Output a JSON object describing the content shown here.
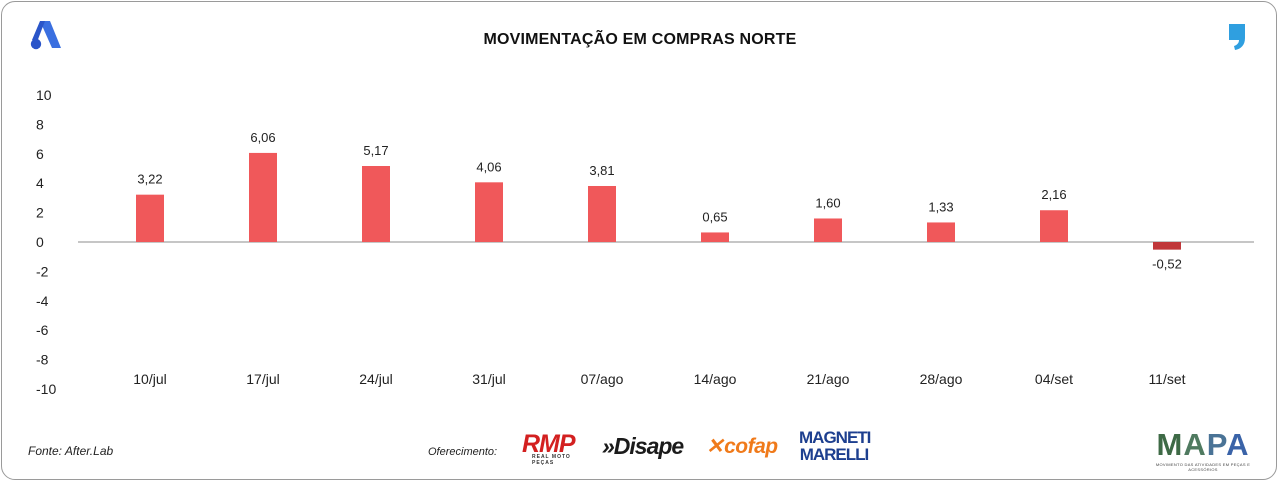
{
  "chart_data": {
    "type": "bar",
    "title": "MOVIMENTAÇÃO EM COMPRAS NORTE",
    "categories": [
      "10/jul",
      "17/jul",
      "24/jul",
      "31/jul",
      "07/ago",
      "14/ago",
      "21/ago",
      "28/ago",
      "04/set",
      "11/set"
    ],
    "values": [
      3.22,
      6.06,
      5.17,
      4.06,
      3.81,
      0.65,
      1.6,
      1.33,
      2.16,
      -0.52
    ],
    "value_labels": [
      "3,22",
      "6,06",
      "5,17",
      "4,06",
      "3,81",
      "0,65",
      "1,60",
      "1,33",
      "2,16",
      "-0,52"
    ],
    "ylim": [
      -10,
      10
    ],
    "yticks": [
      10,
      8,
      6,
      4,
      2,
      0,
      -2,
      -4,
      -6,
      -8,
      -10
    ],
    "ytick_labels": [
      "10",
      "8",
      "6",
      "4",
      "2",
      "0",
      "-2",
      "-4",
      "-6",
      "-8",
      "-10"
    ],
    "xlabel": "",
    "ylabel": "",
    "grid": false
  },
  "colors": {
    "positive_bar": "#f0585a",
    "negative_bar": "#c0373a",
    "axis_line": "#8c8c8c",
    "brand_blue": "#2e5fd6",
    "quote_blue": "#2f9fe0"
  },
  "footer": {
    "source": "Fonte: After.Lab",
    "offered_by": "Oferecimento:"
  },
  "sponsors": {
    "rmp": "RMP",
    "rmp_tagline": "REAL MOTO PEÇAS",
    "disape": "»Disape",
    "cofap": "cofap",
    "magneti_line1": "MAGNETI",
    "magneti_line2": "MARELLI",
    "mapa": "MAPA",
    "mapa_tagline": "MOVIMENTO DAS ATIVIDADES EM PEÇAS E ACESSÓRIOS"
  },
  "icons": {
    "top_left_logo": "afterlab-a-logo-icon",
    "top_right_logo": "quote-mark-logo-icon"
  }
}
